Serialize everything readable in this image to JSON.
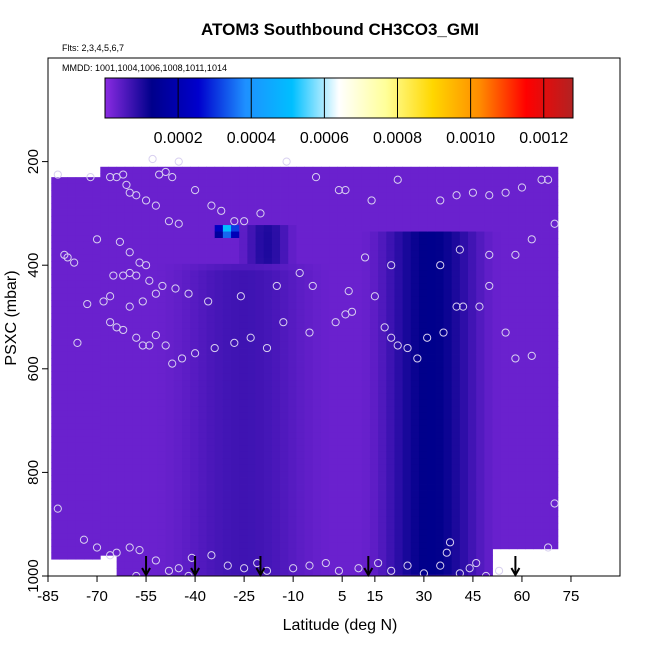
{
  "chart_data": {
    "type": "heatmap",
    "title": "ATOM3 Southbound CH3CO3_GMI",
    "flights_label": "Flts: 2,3,4,5,6,7",
    "dates_label": "MMDD: 1001,1004,1006,1008,1011,1014",
    "xlabel": "Latitude (deg N)",
    "ylabel": "PSXC (mbar)",
    "xlim": [
      -85,
      90
    ],
    "ylim": [
      1000,
      0
    ],
    "x_ticks": [
      -85,
      -70,
      -55,
      -40,
      -25,
      -10,
      5,
      15,
      30,
      45,
      60,
      75
    ],
    "y_ticks": [
      200,
      400,
      600,
      800,
      1000
    ],
    "colorbar": {
      "range": [
        0,
        0.00128
      ],
      "tick_values": [
        0.0002,
        0.0004,
        0.0006,
        0.0008,
        0.001,
        0.0012
      ],
      "tick_labels": [
        "0.0002",
        "0.0004",
        "0.0006",
        "0.0008",
        "0.0010",
        "0.0012"
      ],
      "colors": [
        "#8a2be2",
        "#00008b",
        "#0000cd",
        "#1e90ff",
        "#00bfff",
        "#ffffff",
        "#ffff99",
        "#ffd700",
        "#ff8c00",
        "#ff0000",
        "#b22222"
      ]
    },
    "field_extent": {
      "lat_min": -84,
      "lat_max": 71,
      "p_top": 210,
      "p_bottom": 1005
    },
    "background_value": 3e-05,
    "features": [
      {
        "name": "lower-tropical-maximum",
        "lat_center": 32,
        "lat_halfwidth": 22,
        "p_min": 330,
        "p_max": 1005,
        "value": 0.00013
      },
      {
        "name": "mid-latitude-column",
        "lat_center": -25,
        "lat_halfwidth": 28,
        "p_min": 400,
        "p_max": 1005,
        "value": 7e-05
      },
      {
        "name": "upper-tropospheric-band",
        "lat_center": -18,
        "lat_halfwidth": 10,
        "p_min": 320,
        "p_max": 400,
        "value": 0.0001
      },
      {
        "name": "upper-tropospheric-peak",
        "lat_center": -30,
        "lat_halfwidth": 5,
        "p_min": 320,
        "p_max": 345,
        "value": 0.00052
      }
    ],
    "samples": [
      [
        -82,
        225
      ],
      [
        -79,
        385
      ],
      [
        -72,
        230
      ],
      [
        -66,
        230
      ],
      [
        -64,
        230
      ],
      [
        -62,
        225
      ],
      [
        -61,
        245
      ],
      [
        -60,
        260
      ],
      [
        -58,
        265
      ],
      [
        -53,
        195
      ],
      [
        -51,
        225
      ],
      [
        -49,
        220
      ],
      [
        -47,
        230
      ],
      [
        -45,
        200
      ],
      [
        -55,
        275
      ],
      [
        -52,
        285
      ],
      [
        -48,
        315
      ],
      [
        -45,
        320
      ],
      [
        -40,
        255
      ],
      [
        -35,
        285
      ],
      [
        -32,
        295
      ],
      [
        -28,
        315
      ],
      [
        -25,
        315
      ],
      [
        -20,
        300
      ],
      [
        -12,
        200
      ],
      [
        -3,
        230
      ],
      [
        4,
        255
      ],
      [
        6,
        255
      ],
      [
        14,
        275
      ],
      [
        22,
        235
      ],
      [
        35,
        275
      ],
      [
        40,
        265
      ],
      [
        45,
        260
      ],
      [
        50,
        265
      ],
      [
        55,
        260
      ],
      [
        60,
        250
      ],
      [
        66,
        235
      ],
      [
        68,
        235
      ],
      [
        70,
        320
      ],
      [
        63,
        350
      ],
      [
        58,
        380
      ],
      [
        50,
        380
      ],
      [
        41,
        370
      ],
      [
        35,
        400
      ],
      [
        20,
        400
      ],
      [
        12,
        385
      ],
      [
        7,
        450
      ],
      [
        -4,
        440
      ],
      [
        -8,
        415
      ],
      [
        -15,
        440
      ],
      [
        -26,
        460
      ],
      [
        -36,
        470
      ],
      [
        -42,
        455
      ],
      [
        -46,
        445
      ],
      [
        -50,
        440
      ],
      [
        -54,
        430
      ],
      [
        -58,
        420
      ],
      [
        -60,
        415
      ],
      [
        -62,
        420
      ],
      [
        -65,
        420
      ],
      [
        -66,
        460
      ],
      [
        -68,
        470
      ],
      [
        -73,
        475
      ],
      [
        -60,
        480
      ],
      [
        -56,
        470
      ],
      [
        -52,
        455
      ],
      [
        -55,
        400
      ],
      [
        -57,
        395
      ],
      [
        -60,
        375
      ],
      [
        -63,
        355
      ],
      [
        -70,
        350
      ],
      [
        -77,
        395
      ],
      [
        -80,
        380
      ],
      [
        -76,
        550
      ],
      [
        -66,
        510
      ],
      [
        -64,
        520
      ],
      [
        -62,
        525
      ],
      [
        -58,
        540
      ],
      [
        -56,
        555
      ],
      [
        -54,
        555
      ],
      [
        -52,
        535
      ],
      [
        -49,
        555
      ],
      [
        -47,
        590
      ],
      [
        -44,
        580
      ],
      [
        -40,
        570
      ],
      [
        -34,
        560
      ],
      [
        -28,
        550
      ],
      [
        -23,
        540
      ],
      [
        -18,
        560
      ],
      [
        -13,
        510
      ],
      [
        -5,
        530
      ],
      [
        3,
        510
      ],
      [
        6,
        495
      ],
      [
        8,
        490
      ],
      [
        15,
        460
      ],
      [
        18,
        520
      ],
      [
        20,
        540
      ],
      [
        22,
        555
      ],
      [
        25,
        560
      ],
      [
        28,
        580
      ],
      [
        31,
        540
      ],
      [
        36,
        530
      ],
      [
        40,
        480
      ],
      [
        42,
        480
      ],
      [
        47,
        480
      ],
      [
        50,
        440
      ],
      [
        55,
        530
      ],
      [
        58,
        580
      ],
      [
        63,
        575
      ],
      [
        -82,
        870
      ],
      [
        -74,
        930
      ],
      [
        -70,
        945
      ],
      [
        -66,
        960
      ],
      [
        -64,
        955
      ],
      [
        -60,
        945
      ],
      [
        -57,
        950
      ],
      [
        -52,
        970
      ],
      [
        -48,
        990
      ],
      [
        -45,
        985
      ],
      [
        -41,
        965
      ],
      [
        -35,
        960
      ],
      [
        -30,
        980
      ],
      [
        -25,
        985
      ],
      [
        -21,
        975
      ],
      [
        -18,
        990
      ],
      [
        -10,
        985
      ],
      [
        -5,
        980
      ],
      [
        0,
        975
      ],
      [
        4,
        990
      ],
      [
        10,
        985
      ],
      [
        16,
        975
      ],
      [
        20,
        990
      ],
      [
        25,
        980
      ],
      [
        30,
        995
      ],
      [
        35,
        980
      ],
      [
        37,
        955
      ],
      [
        38,
        935
      ],
      [
        41,
        995
      ],
      [
        44,
        985
      ],
      [
        46,
        975
      ],
      [
        49,
        1000
      ],
      [
        53,
        990
      ],
      [
        68,
        945
      ],
      [
        70,
        860
      ],
      [
        -42,
        1000
      ],
      [
        -58,
        1000
      ]
    ],
    "flight_markers_lat": [
      -55,
      -40,
      -20,
      13,
      58
    ]
  }
}
